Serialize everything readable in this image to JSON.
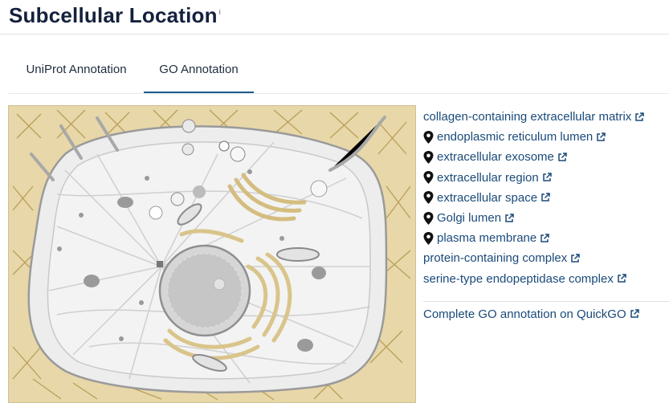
{
  "header": {
    "title": "Subcellular Location",
    "info_marker": "i"
  },
  "tabs": [
    {
      "label": "UniProt Annotation",
      "active": false
    },
    {
      "label": "GO Annotation",
      "active": true
    }
  ],
  "go_terms": [
    {
      "label": "collagen-containing extracellular matrix",
      "pin": false
    },
    {
      "label": "endoplasmic reticulum lumen",
      "pin": true
    },
    {
      "label": "extracellular exosome",
      "pin": true
    },
    {
      "label": "extracellular region",
      "pin": true
    },
    {
      "label": "extracellular space",
      "pin": true
    },
    {
      "label": "Golgi lumen",
      "pin": true
    },
    {
      "label": "plasma membrane",
      "pin": true
    },
    {
      "label": "protein-containing complex",
      "pin": false
    },
    {
      "label": "serine-type endopeptidase complex",
      "pin": false
    }
  ],
  "quickgo_link": "Complete GO annotation on QuickGO",
  "icons": {
    "pin": "map-pin-icon",
    "external": "external-link-icon"
  },
  "colors": {
    "link": "#1a4a7a",
    "active_tab": "#1b5c8c",
    "cell_background": "#e8d7a8"
  }
}
